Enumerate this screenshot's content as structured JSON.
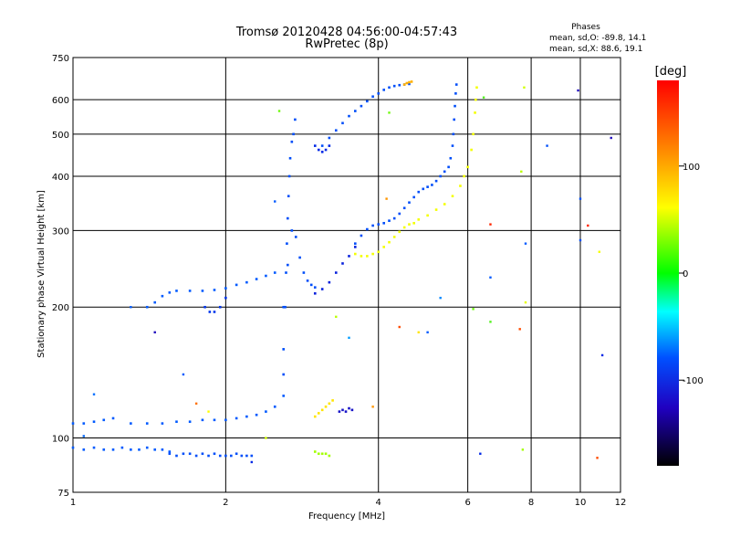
{
  "chart_data": {
    "type": "scatter",
    "title": "Tromsø 20120428 04:56:00-04:57:43",
    "subtitle": "RwPretec (8p)",
    "xlabel": "Frequency [MHz]",
    "ylabel": "Stationary phase Virtual Height [km]",
    "x_scale": "log",
    "y_scale": "log",
    "xlim": [
      1,
      12
    ],
    "ylim": [
      75,
      750
    ],
    "x_ticks": [
      1,
      2,
      4,
      6,
      8,
      10,
      12
    ],
    "x_tick_labels": [
      "1",
      "2",
      "4",
      "6",
      "8",
      "10",
      "12"
    ],
    "y_ticks": [
      75,
      100,
      200,
      300,
      400,
      500,
      600,
      750
    ],
    "y_tick_labels": [
      "75",
      "100",
      "200",
      "300",
      "400",
      "500",
      "600",
      "750"
    ],
    "grid": true,
    "phases_legend": {
      "title": "Phases",
      "line1": "mean, sd,O: -89.8, 14.1",
      "line2": "mean, sd,X: 88.6, 19.1"
    },
    "colorbar": {
      "label": "[deg]",
      "ticks": [
        100,
        0,
        -100
      ],
      "tick_labels": [
        "100",
        "0",
        "-100"
      ],
      "range": [
        -180,
        180
      ]
    },
    "traces": [
      {
        "phase": -90,
        "points": [
          [
            1.0,
            95
          ],
          [
            1.05,
            94
          ],
          [
            1.1,
            95
          ],
          [
            1.15,
            94
          ],
          [
            1.2,
            94
          ],
          [
            1.25,
            95
          ],
          [
            1.3,
            94
          ],
          [
            1.35,
            94
          ],
          [
            1.4,
            95
          ],
          [
            1.45,
            94
          ],
          [
            1.5,
            94
          ],
          [
            1.55,
            93
          ]
        ]
      },
      {
        "phase": -95,
        "points": [
          [
            1.55,
            92
          ],
          [
            1.6,
            91
          ],
          [
            1.65,
            92
          ],
          [
            1.7,
            92
          ],
          [
            1.75,
            91
          ],
          [
            1.8,
            92
          ],
          [
            1.85,
            91
          ],
          [
            1.9,
            92
          ],
          [
            1.95,
            91
          ],
          [
            2.0,
            91
          ],
          [
            2.05,
            91
          ],
          [
            2.1,
            92
          ],
          [
            2.15,
            91
          ],
          [
            2.2,
            91
          ],
          [
            2.25,
            91
          ]
        ]
      },
      {
        "phase": -90,
        "points": [
          [
            1.0,
            108
          ],
          [
            1.05,
            108
          ],
          [
            1.1,
            109
          ],
          [
            1.15,
            110
          ],
          [
            1.2,
            111
          ]
        ]
      },
      {
        "phase": -90,
        "points": [
          [
            1.3,
            108
          ],
          [
            1.4,
            108
          ],
          [
            1.5,
            108
          ],
          [
            1.6,
            109
          ],
          [
            1.7,
            109
          ],
          [
            1.8,
            110
          ],
          [
            1.9,
            110
          ],
          [
            2.0,
            110
          ],
          [
            2.1,
            111
          ],
          [
            2.2,
            112
          ],
          [
            2.3,
            113
          ],
          [
            2.4,
            115
          ],
          [
            2.5,
            118
          ],
          [
            2.6,
            125
          ]
        ]
      },
      {
        "phase": -90,
        "points": [
          [
            1.4,
            200
          ],
          [
            1.45,
            205
          ],
          [
            1.5,
            212
          ],
          [
            1.55,
            216
          ],
          [
            1.6,
            218
          ],
          [
            1.7,
            218
          ],
          [
            1.8,
            218
          ],
          [
            1.9,
            219
          ],
          [
            2.0,
            221
          ],
          [
            2.1,
            225
          ],
          [
            2.2,
            228
          ],
          [
            2.3,
            232
          ],
          [
            2.4,
            236
          ],
          [
            2.5,
            240
          ]
        ]
      },
      {
        "phase": -105,
        "points": [
          [
            1.82,
            200
          ],
          [
            1.86,
            195
          ],
          [
            1.9,
            195
          ],
          [
            1.95,
            200
          ],
          [
            2.0,
            210
          ]
        ]
      },
      {
        "phase": -95,
        "points": [
          [
            2.6,
            140
          ],
          [
            2.6,
            160
          ],
          [
            2.62,
            200
          ],
          [
            2.63,
            240
          ],
          [
            2.64,
            280
          ],
          [
            2.65,
            320
          ],
          [
            2.66,
            360
          ],
          [
            2.67,
            400
          ],
          [
            2.68,
            440
          ],
          [
            2.7,
            480
          ],
          [
            2.72,
            500
          ],
          [
            2.74,
            540
          ]
        ]
      },
      {
        "phase": -95,
        "points": [
          [
            2.6,
            200
          ],
          [
            2.65,
            250
          ],
          [
            2.7,
            300
          ],
          [
            2.75,
            290
          ],
          [
            2.8,
            260
          ],
          [
            2.85,
            240
          ],
          [
            2.9,
            230
          ],
          [
            2.95,
            225
          ],
          [
            3.0,
            222
          ]
        ]
      },
      {
        "phase": -115,
        "points": [
          [
            3.0,
            215
          ],
          [
            3.1,
            220
          ],
          [
            3.2,
            228
          ],
          [
            3.3,
            240
          ],
          [
            3.4,
            252
          ],
          [
            3.5,
            262
          ],
          [
            3.6,
            275
          ]
        ]
      },
      {
        "phase": -95,
        "points": [
          [
            3.6,
            280
          ],
          [
            3.7,
            292
          ],
          [
            3.8,
            302
          ],
          [
            3.9,
            308
          ],
          [
            4.0,
            310
          ],
          [
            4.1,
            312
          ],
          [
            4.2,
            316
          ],
          [
            4.3,
            320
          ],
          [
            4.4,
            328
          ],
          [
            4.5,
            338
          ],
          [
            4.6,
            348
          ],
          [
            4.7,
            358
          ],
          [
            4.8,
            368
          ],
          [
            4.9,
            374
          ],
          [
            5.0,
            378
          ],
          [
            5.1,
            382
          ],
          [
            5.2,
            390
          ],
          [
            5.3,
            400
          ],
          [
            5.4,
            410
          ],
          [
            5.5,
            420
          ],
          [
            5.55,
            440
          ],
          [
            5.6,
            470
          ],
          [
            5.62,
            500
          ],
          [
            5.64,
            540
          ],
          [
            5.66,
            580
          ],
          [
            5.68,
            620
          ],
          [
            5.7,
            650
          ]
        ]
      },
      {
        "phase": -95,
        "points": [
          [
            3.1,
            470
          ],
          [
            3.2,
            490
          ],
          [
            3.3,
            510
          ],
          [
            3.4,
            530
          ],
          [
            3.5,
            550
          ],
          [
            3.6,
            565
          ],
          [
            3.7,
            580
          ],
          [
            3.8,
            595
          ],
          [
            3.9,
            610
          ],
          [
            4.0,
            620
          ],
          [
            4.1,
            632
          ],
          [
            4.2,
            640
          ],
          [
            4.3,
            645
          ],
          [
            4.4,
            648
          ],
          [
            4.5,
            650
          ],
          [
            4.6,
            652
          ]
        ]
      },
      {
        "phase": -110,
        "points": [
          [
            3.0,
            470
          ],
          [
            3.05,
            460
          ],
          [
            3.1,
            455
          ],
          [
            3.15,
            460
          ],
          [
            3.2,
            470
          ]
        ]
      },
      {
        "phase": 95,
        "points": [
          [
            3.6,
            265
          ],
          [
            3.7,
            262
          ],
          [
            3.8,
            262
          ],
          [
            3.9,
            265
          ],
          [
            4.0,
            268
          ],
          [
            4.1,
            275
          ],
          [
            4.2,
            282
          ],
          [
            4.3,
            290
          ],
          [
            4.4,
            298
          ],
          [
            4.5,
            305
          ],
          [
            4.6,
            310
          ],
          [
            4.7,
            312
          ],
          [
            4.8,
            318
          ],
          [
            5.0,
            325
          ],
          [
            5.2,
            335
          ],
          [
            5.4,
            345
          ],
          [
            5.6,
            360
          ],
          [
            5.8,
            380
          ],
          [
            5.9,
            400
          ],
          [
            6.0,
            420
          ],
          [
            6.1,
            460
          ],
          [
            6.15,
            500
          ],
          [
            6.2,
            560
          ],
          [
            6.22,
            600
          ],
          [
            6.25,
            640
          ]
        ]
      },
      {
        "phase": 110,
        "points": [
          [
            3.0,
            112
          ],
          [
            3.05,
            114
          ],
          [
            3.1,
            116
          ],
          [
            3.15,
            118
          ],
          [
            3.2,
            120
          ],
          [
            3.25,
            122
          ]
        ]
      },
      {
        "phase": 60,
        "points": [
          [
            3.0,
            93
          ],
          [
            3.05,
            92
          ],
          [
            3.1,
            92
          ],
          [
            3.15,
            92
          ],
          [
            3.2,
            91
          ]
        ]
      },
      {
        "phase": -125,
        "points": [
          [
            3.35,
            115
          ],
          [
            3.4,
            116
          ],
          [
            3.45,
            115
          ],
          [
            3.5,
            117
          ],
          [
            3.55,
            116
          ]
        ]
      },
      {
        "phase": 130,
        "points": [
          [
            4.5,
            650
          ],
          [
            4.55,
            655
          ],
          [
            4.6,
            658
          ],
          [
            4.65,
            660
          ]
        ]
      }
    ],
    "scatter_points": [
      {
        "x": 1.1,
        "y": 126,
        "phase": -80
      },
      {
        "x": 1.05,
        "y": 101,
        "phase": -85
      },
      {
        "x": 1.3,
        "y": 200,
        "phase": -90
      },
      {
        "x": 1.45,
        "y": 175,
        "phase": -130
      },
      {
        "x": 1.65,
        "y": 140,
        "phase": -90
      },
      {
        "x": 1.75,
        "y": 120,
        "phase": 150
      },
      {
        "x": 1.85,
        "y": 115,
        "phase": 100
      },
      {
        "x": 2.25,
        "y": 88,
        "phase": -110
      },
      {
        "x": 2.4,
        "y": 100,
        "phase": 80
      },
      {
        "x": 2.55,
        "y": 565,
        "phase": 40
      },
      {
        "x": 2.5,
        "y": 350,
        "phase": -90
      },
      {
        "x": 3.3,
        "y": 190,
        "phase": 70
      },
      {
        "x": 3.5,
        "y": 170,
        "phase": -60
      },
      {
        "x": 3.9,
        "y": 118,
        "phase": 140
      },
      {
        "x": 4.15,
        "y": 355,
        "phase": 140
      },
      {
        "x": 4.2,
        "y": 560,
        "phase": 40
      },
      {
        "x": 4.4,
        "y": 180,
        "phase": 160
      },
      {
        "x": 4.8,
        "y": 175,
        "phase": 110
      },
      {
        "x": 5.0,
        "y": 175,
        "phase": -90
      },
      {
        "x": 5.3,
        "y": 210,
        "phase": -70
      },
      {
        "x": 6.15,
        "y": 198,
        "phase": 40
      },
      {
        "x": 6.35,
        "y": 92,
        "phase": -110
      },
      {
        "x": 6.65,
        "y": 310,
        "phase": 170
      },
      {
        "x": 6.65,
        "y": 234,
        "phase": -90
      },
      {
        "x": 6.65,
        "y": 185,
        "phase": 30
      },
      {
        "x": 6.45,
        "y": 607,
        "phase": 30
      },
      {
        "x": 7.6,
        "y": 178,
        "phase": 160
      },
      {
        "x": 7.65,
        "y": 410,
        "phase": 70
      },
      {
        "x": 7.8,
        "y": 280,
        "phase": -90
      },
      {
        "x": 7.75,
        "y": 640,
        "phase": 80
      },
      {
        "x": 7.8,
        "y": 205,
        "phase": 90
      },
      {
        "x": 7.7,
        "y": 94,
        "phase": 60
      },
      {
        "x": 8.6,
        "y": 470,
        "phase": -95
      },
      {
        "x": 9.9,
        "y": 630,
        "phase": -130
      },
      {
        "x": 10.0,
        "y": 355,
        "phase": -95
      },
      {
        "x": 10.0,
        "y": 285,
        "phase": -95
      },
      {
        "x": 10.35,
        "y": 308,
        "phase": 170
      },
      {
        "x": 10.9,
        "y": 268,
        "phase": 95
      },
      {
        "x": 11.05,
        "y": 155,
        "phase": -110
      },
      {
        "x": 10.8,
        "y": 90,
        "phase": 160
      },
      {
        "x": 11.5,
        "y": 490,
        "phase": -130
      }
    ]
  }
}
